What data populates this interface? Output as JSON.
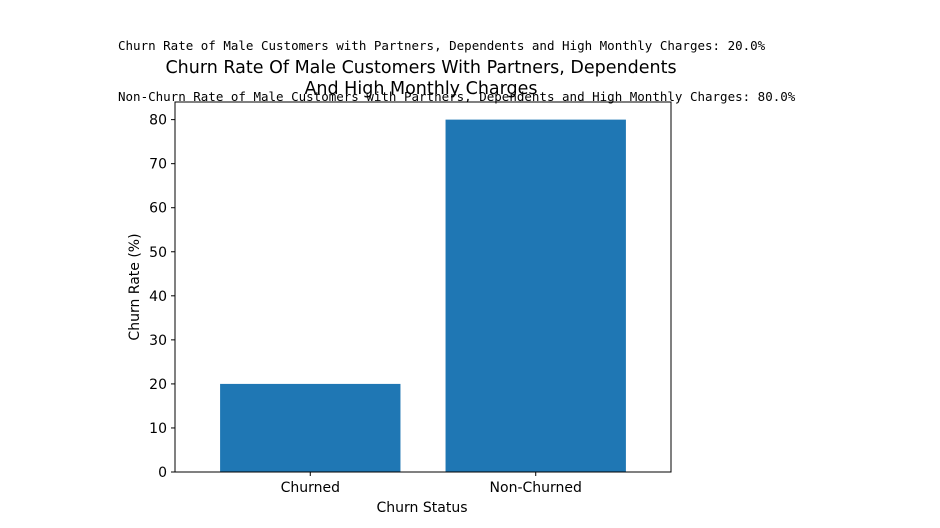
{
  "output": {
    "lines": [
      "Churn Rate of Male Customers with Partners, Dependents and High Monthly Charges: 20.0%",
      "Non-Churn Rate of Male Customers with Partners, Dependents and High Monthly Charges: 80.0%"
    ]
  },
  "chart_data": {
    "type": "bar",
    "title": "Churn Rate Of Male Customers With Partners, Dependents\nAnd High Monthly Charges",
    "title_lines": [
      "Churn Rate Of Male Customers With Partners, Dependents",
      "And High Monthly Charges"
    ],
    "xlabel": "Churn Status",
    "ylabel": "Churn Rate (%)",
    "categories": [
      "Churned",
      "Non-Churned"
    ],
    "values": [
      20.0,
      80.0
    ],
    "ylim": [
      0,
      84
    ],
    "yticks": [
      0,
      10,
      20,
      30,
      40,
      50,
      60,
      70,
      80
    ],
    "grid": false,
    "bar_color": "#1f77b4"
  }
}
